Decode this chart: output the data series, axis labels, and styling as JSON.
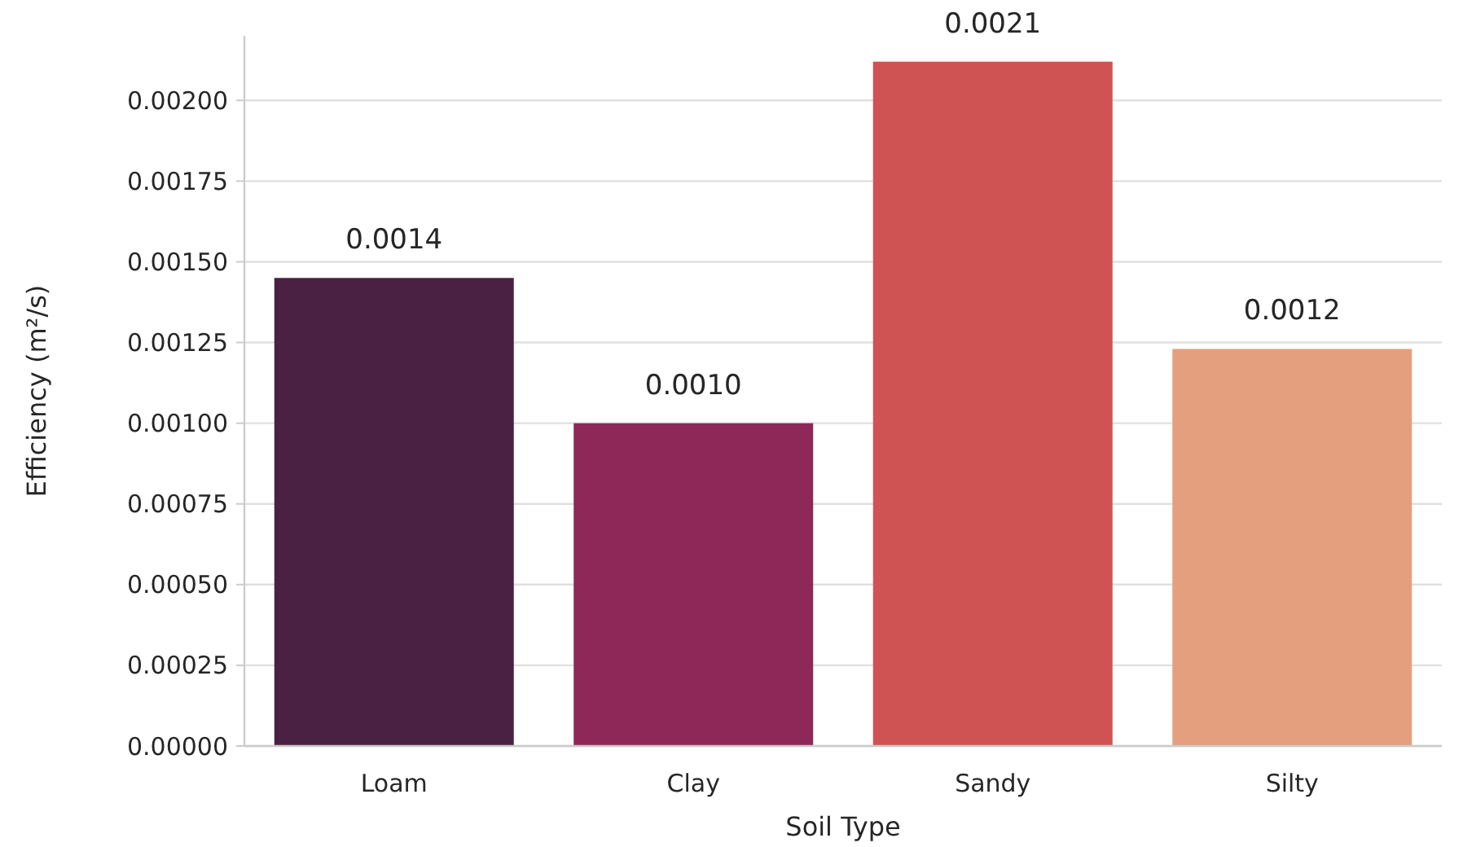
{
  "chart_data": {
    "type": "bar",
    "xlabel": "Soil Type",
    "ylabel": "Efficiency (m²/s)",
    "categories": [
      "Loam",
      "Clay",
      "Sandy",
      "Silty"
    ],
    "values": [
      0.00145,
      0.001,
      0.00212,
      0.00123
    ],
    "colors": [
      "#4a2142",
      "#8e2858",
      "#d05353",
      "#e39f7e"
    ],
    "value_labels": [
      "0.0014",
      "0.0010",
      "0.0021",
      "0.0012"
    ],
    "ylim": [
      0,
      0.0022
    ],
    "yticks": [
      {
        "value": 0,
        "label": "0.00000"
      },
      {
        "value": 0.00025,
        "label": "0.00025"
      },
      {
        "value": 0.0005,
        "label": "0.00050"
      },
      {
        "value": 0.00075,
        "label": "0.00075"
      },
      {
        "value": 0.001,
        "label": "0.00100"
      },
      {
        "value": 0.00125,
        "label": "0.00125"
      },
      {
        "value": 0.0015,
        "label": "0.00150"
      },
      {
        "value": 0.00175,
        "label": "0.00175"
      },
      {
        "value": 0.002,
        "label": "0.00200"
      }
    ],
    "grid": "y"
  }
}
